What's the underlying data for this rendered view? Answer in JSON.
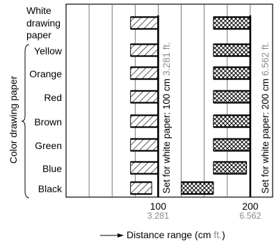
{
  "chart_data": {
    "type": "bar",
    "categories": [
      "White drawing paper",
      "Yellow",
      "Orange",
      "Red",
      "Brown",
      "Green",
      "Blue",
      "Black"
    ],
    "category_lines": [
      [
        "White",
        "drawing",
        "paper"
      ],
      [
        "Yellow"
      ],
      [
        "Orange"
      ],
      [
        "Red"
      ],
      [
        "Brown"
      ],
      [
        "Green"
      ],
      [
        "Blue"
      ],
      [
        "Black"
      ]
    ],
    "group_label": "Color drawing paper",
    "series": [
      {
        "set_at_cm": 100,
        "annotation": {
          "main": "Set for white paper: 100 cm",
          "alt": "3.281 ft."
        },
        "ranges": [
          [
            70,
            100
          ],
          [
            70,
            100
          ],
          [
            70,
            100
          ],
          [
            70,
            100
          ],
          [
            70,
            100
          ],
          [
            70,
            100
          ],
          [
            70,
            100
          ],
          [
            70,
            93
          ]
        ],
        "pattern": "hatch"
      },
      {
        "set_at_cm": 200,
        "annotation": {
          "main": "Set for white paper: 200 cm",
          "alt": "6.562 ft."
        },
        "ranges": [
          [
            160,
            200
          ],
          [
            160,
            200
          ],
          [
            160,
            200
          ],
          [
            160,
            200
          ],
          [
            160,
            200
          ],
          [
            160,
            200
          ],
          [
            160,
            196
          ],
          [
            125,
            160
          ]
        ],
        "pattern": "crosshatch"
      }
    ],
    "xaxis": {
      "label": "Distance range (cm",
      "label_unit": "ft.",
      "label_close": ")",
      "ticks": [
        {
          "value": 100,
          "label": "100",
          "sublabel": "3.281"
        },
        {
          "value": 200,
          "label": "200",
          "sublabel": "6.562"
        }
      ],
      "xlim": [
        0,
        225
      ],
      "gridlines": [
        25,
        50,
        75,
        100,
        125,
        150,
        175,
        200
      ]
    },
    "colors": {
      "ink": "#000000",
      "secondary": "#8c8c8c",
      "grid": "#555555"
    }
  }
}
